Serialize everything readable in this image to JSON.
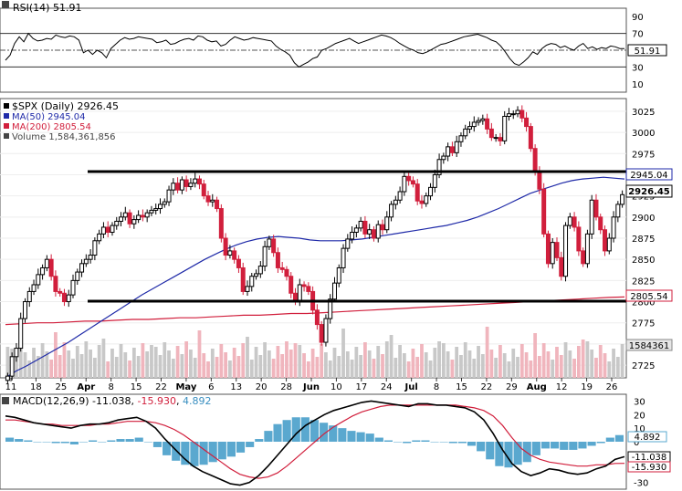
{
  "rsi": {
    "label": "RSI(14) 51.91",
    "current": "51.91",
    "ticks": [
      "90",
      "70",
      "50",
      "30",
      "10"
    ]
  },
  "price": {
    "legend": [
      {
        "text": "$SPX (Daily) 2926.45",
        "color": "#000000"
      },
      {
        "text": "MA(50) 2945.04",
        "color": "#1f2aa8"
      },
      {
        "text": "MA(200) 2805.54",
        "color": "#d11f3c"
      },
      {
        "text": "Volume 1,584,361,856",
        "color": "#444444"
      }
    ],
    "ticks": [
      "3025",
      "3000",
      "2975",
      "2950",
      "2925",
      "2900",
      "2875",
      "2850",
      "2825",
      "2800",
      "2775",
      "2750",
      "2725"
    ],
    "badges": {
      "ma50": "2945.04",
      "close": "2926.45",
      "ma200": "2805.54",
      "volume": "1584361"
    }
  },
  "xaxis": [
    "11",
    "18",
    "25",
    "Apr",
    "8",
    "15",
    "22",
    "May",
    "6",
    "13",
    "20",
    "28",
    "Jun",
    "10",
    "17",
    "24",
    "Jul",
    "8",
    "15",
    "22",
    "29",
    "Aug",
    "12",
    "19",
    "26"
  ],
  "macd": {
    "label_prefix": "MACD(12,26,9)",
    "macd_value": "-11.038",
    "signal_value": "-15.930",
    "hist_value": "4.892",
    "ticks": [
      "30",
      "20",
      "10",
      "0",
      "-10",
      "-20",
      "-30"
    ],
    "badges": {
      "hist": "4.892",
      "macd": "-11.038",
      "signal": "-15.930"
    }
  },
  "colors": {
    "up": "#000000",
    "down": "#d11f3c",
    "ma50": "#1f2aa8",
    "ma200": "#d11f3c",
    "volume": "#c3c3c3",
    "macd_hist": "#5aa8cf"
  },
  "chart_data": [
    {
      "type": "line",
      "title": "RSI(14) 51.91",
      "ylim": [
        0,
        100
      ],
      "series": [
        {
          "name": "RSI(14)",
          "values": [
            38,
            44,
            58,
            66,
            60,
            70,
            64,
            61,
            62,
            64,
            63,
            68,
            66,
            65,
            67,
            66,
            62,
            47,
            50,
            45,
            50,
            47,
            41,
            52,
            57,
            62,
            65,
            63,
            64,
            66,
            65,
            64,
            63,
            59,
            60,
            62,
            57,
            58,
            61,
            63,
            64,
            62,
            67,
            66,
            62,
            60,
            61,
            55,
            57,
            62,
            66,
            64,
            62,
            63,
            65,
            64,
            63,
            62,
            61,
            55,
            51,
            48,
            44,
            35,
            30,
            33,
            36,
            40,
            42,
            50,
            52,
            55,
            58,
            60,
            62,
            64,
            61,
            58,
            60,
            62,
            64,
            66,
            68,
            67,
            65,
            62,
            58,
            55,
            52,
            50,
            47,
            46,
            48,
            51,
            54,
            57,
            58,
            60,
            62,
            64,
            66,
            67,
            68,
            69,
            67,
            65,
            62,
            60,
            55,
            48,
            40,
            34,
            32,
            36,
            41,
            48,
            45,
            52,
            56,
            58,
            57,
            53,
            55,
            52,
            50,
            55,
            58,
            52,
            54,
            51,
            53,
            52,
            55,
            54,
            52,
            51.91
          ]
        }
      ]
    },
    {
      "type": "line",
      "title": "$SPX (Daily) 2926.45",
      "ylim": [
        2710,
        3040
      ],
      "series": [
        {
          "name": "$SPX (Daily)",
          "values": [
            2712,
            2735,
            2745,
            2780,
            2800,
            2812,
            2820,
            2832,
            2840,
            2850,
            2830,
            2812,
            2810,
            2800,
            2808,
            2825,
            2835,
            2845,
            2850,
            2855,
            2872,
            2880,
            2888,
            2882,
            2890,
            2895,
            2900,
            2905,
            2892,
            2897,
            2902,
            2900,
            2905,
            2908,
            2910,
            2915,
            2918,
            2932,
            2940,
            2932,
            2944,
            2936,
            2940,
            2945,
            2939,
            2925,
            2918,
            2920,
            2910,
            2875,
            2855,
            2860,
            2850,
            2840,
            2812,
            2818,
            2830,
            2833,
            2842,
            2865,
            2874,
            2858,
            2840,
            2838,
            2830,
            2810,
            2800,
            2820,
            2818,
            2812,
            2790,
            2773,
            2752,
            2780,
            2803,
            2822,
            2840,
            2863,
            2874,
            2882,
            2887,
            2895,
            2880,
            2885,
            2875,
            2891,
            2885,
            2900,
            2915,
            2920,
            2930,
            2948,
            2943,
            2939,
            2919,
            2916,
            2925,
            2935,
            2950,
            2968,
            2972,
            2983,
            2976,
            2989,
            2996,
            3004,
            3007,
            3012,
            3014,
            3016,
            3004,
            2994,
            2994,
            2990,
            3019,
            3022,
            3022,
            3026,
            3017,
            3007,
            2981,
            2954,
            2933,
            2880,
            2845,
            2870,
            2852,
            2830,
            2890,
            2900,
            2888,
            2860,
            2845,
            2880,
            2920,
            2900,
            2885,
            2860,
            2875,
            2900,
            2915,
            2926.45
          ]
        },
        {
          "name": "MA(50)",
          "values": [
            2710,
            2718,
            2724,
            2731,
            2738,
            2745,
            2752,
            2760,
            2768,
            2776,
            2784,
            2792,
            2800,
            2808,
            2815,
            2822,
            2829,
            2836,
            2843,
            2850,
            2856,
            2862,
            2867,
            2871,
            2874,
            2876,
            2877,
            2876,
            2875,
            2873,
            2872,
            2872,
            2872,
            2873,
            2874,
            2876,
            2878,
            2880,
            2882,
            2884,
            2886,
            2888,
            2890,
            2893,
            2896,
            2900,
            2905,
            2910,
            2916,
            2922,
            2928,
            2932,
            2936,
            2940,
            2943,
            2945,
            2946,
            2947,
            2946,
            2945.04
          ]
        },
        {
          "name": "MA(200)",
          "values": [
            2773,
            2774,
            2775,
            2775,
            2776,
            2777,
            2777,
            2778,
            2779,
            2779,
            2780,
            2781,
            2781,
            2782,
            2783,
            2784,
            2784,
            2785,
            2786,
            2786,
            2787,
            2788,
            2789,
            2790,
            2791,
            2792,
            2793,
            2794,
            2795,
            2796,
            2797,
            2798,
            2799,
            2800,
            2801,
            2802,
            2803,
            2804,
            2805,
            2805.54
          ]
        }
      ]
    },
    {
      "type": "line",
      "title": "MACD(12,26,9) -11.038, -15.930, 4.892",
      "ylim": [
        -35,
        35
      ],
      "series": [
        {
          "name": "MACD(12,26,9)",
          "values": [
            19,
            18,
            16,
            14,
            13,
            12,
            11,
            10,
            12,
            13,
            13,
            14,
            16,
            17,
            18,
            15,
            10,
            2,
            -5,
            -12,
            -18,
            -22,
            -25,
            -28,
            -31,
            -32,
            -30,
            -25,
            -18,
            -10,
            -2,
            6,
            12,
            16,
            20,
            23,
            25,
            27,
            29,
            30,
            29,
            28,
            27,
            26,
            28,
            28,
            27,
            27,
            26,
            25,
            22,
            16,
            6,
            -6,
            -16,
            -22,
            -25,
            -23,
            -20,
            -21,
            -23,
            -24,
            -23,
            -20,
            -18,
            -13,
            -11.038
          ]
        },
        {
          "name": "Signal",
          "values": [
            16,
            16,
            15,
            14,
            13,
            13,
            12,
            12,
            12,
            12,
            13,
            13,
            14,
            15,
            15,
            15,
            14,
            12,
            9,
            5,
            0,
            -5,
            -10,
            -15,
            -20,
            -24,
            -26,
            -27,
            -26,
            -23,
            -18,
            -12,
            -6,
            0,
            6,
            11,
            15,
            19,
            22,
            24,
            26,
            27,
            27,
            27,
            27,
            27,
            27,
            27,
            27,
            26,
            25,
            23,
            19,
            12,
            3,
            -5,
            -10,
            -13,
            -15,
            -16,
            -17,
            -18,
            -18,
            -17,
            -17,
            -16,
            -15.93
          ]
        },
        {
          "name": "Histogram",
          "values": [
            3,
            2,
            1,
            0,
            0,
            -1,
            -1,
            -2,
            0,
            1,
            0,
            1,
            2,
            2,
            3,
            0,
            -4,
            -10,
            -14,
            -17,
            -18,
            -17,
            -15,
            -13,
            -11,
            -8,
            -4,
            2,
            8,
            13,
            16,
            18,
            18,
            16,
            14,
            12,
            10,
            8,
            7,
            6,
            3,
            1,
            0,
            -1,
            1,
            1,
            0,
            0,
            -1,
            -1,
            -3,
            -7,
            -13,
            -18,
            -19,
            -17,
            -15,
            -10,
            -5,
            -5,
            -6,
            -6,
            -5,
            -3,
            -1,
            3,
            4.892
          ]
        }
      ]
    }
  ]
}
